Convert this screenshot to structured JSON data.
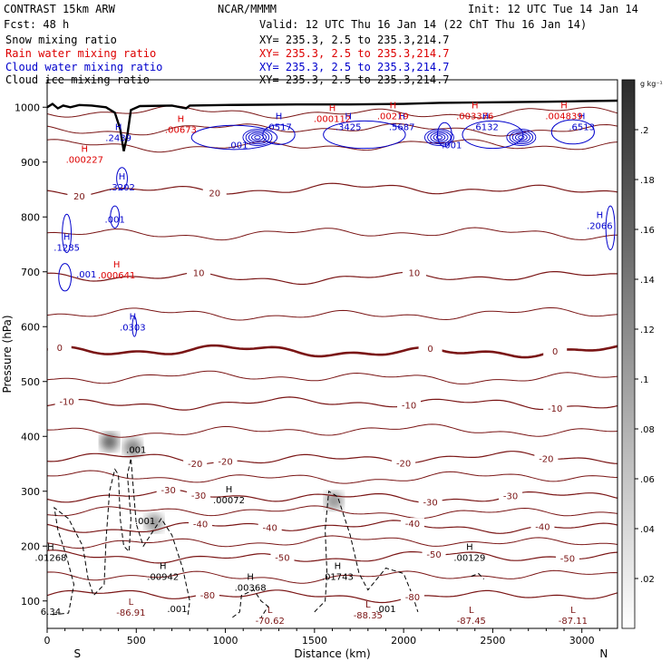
{
  "header": {
    "title": "CONTRAST 15km ARW",
    "center_title": "NCAR/MMMM",
    "init": "Init: 12 UTC Tue 14 Jan 14",
    "fcst": "Fcst:   48 h",
    "valid": "Valid: 12 UTC Thu 16 Jan 14 (22 ChT Thu 16 Jan 14)",
    "fields": [
      {
        "label": "Snow mixing ratio",
        "xy": "XY= 235.3,  2.5 to 235.3,214.7",
        "color": "#000000"
      },
      {
        "label": "Rain water mixing ratio",
        "xy": "XY= 235.3,  2.5 to 235.3,214.7",
        "color": "#dd0000"
      },
      {
        "label": "Cloud water mixing ratio",
        "xy": "XY= 235.3,  2.5 to 235.3,214.7",
        "color": "#0000cc"
      },
      {
        "label": "Cloud ice mixing ratio",
        "xy": "XY= 235.3,  2.5 to 235.3,214.7",
        "color": "#000000"
      }
    ]
  },
  "chart_data": {
    "type": "contour-cross-section",
    "xlabel": "Distance (km)",
    "ylabel": "Pressure (hPa)",
    "xlim": [
      0,
      3200
    ],
    "ylim": [
      1050,
      50
    ],
    "x_ticks": [
      0,
      500,
      1000,
      1500,
      2000,
      2500,
      3000
    ],
    "y_ticks": [
      100,
      200,
      300,
      400,
      500,
      600,
      700,
      800,
      900,
      1000
    ],
    "x_end_labels": {
      "left": "S",
      "right": "N"
    },
    "colorbar": {
      "unit": "g kg⁻¹",
      "ticks": [
        0.02,
        0.04,
        0.06,
        0.08,
        0.1,
        0.12,
        0.14,
        0.16,
        0.18,
        0.2
      ],
      "tick_labels": [
        ".02",
        ".04",
        ".06",
        ".08",
        ".1",
        ".12",
        ".14",
        ".16",
        ".18",
        ".2"
      ]
    },
    "temperature_isotherms": [
      {
        "value": -80,
        "label": "-80",
        "pressure_base": 110,
        "labels": [
          {
            "x": 900,
            "text": "-80"
          },
          {
            "x": 2050,
            "text": "-80"
          }
        ]
      },
      {
        "value": -50,
        "label": "-50",
        "pressure_base": 180,
        "labels": [
          {
            "x": 1320,
            "text": "-50"
          },
          {
            "x": 2170,
            "text": "-50"
          },
          {
            "x": 2920,
            "text": "-50"
          }
        ]
      },
      {
        "value": -40,
        "label": "-40",
        "pressure_base": 235,
        "labels": [
          {
            "x": 860,
            "text": "-40"
          },
          {
            "x": 1250,
            "text": "-40"
          },
          {
            "x": 2050,
            "text": "-40"
          },
          {
            "x": 2780,
            "text": "-40"
          }
        ]
      },
      {
        "value": -30,
        "label": "-30",
        "pressure_base": 290,
        "labels": [
          {
            "x": 680,
            "text": "-30"
          },
          {
            "x": 850,
            "text": "-30"
          },
          {
            "x": 2150,
            "text": "-30"
          },
          {
            "x": 2600,
            "text": "-30"
          }
        ]
      },
      {
        "value": -20,
        "label": "-20",
        "pressure_base": 360,
        "labels": [
          {
            "x": 830,
            "text": "-20"
          },
          {
            "x": 1000,
            "text": "-20"
          },
          {
            "x": 2000,
            "text": "-20"
          },
          {
            "x": 2800,
            "text": "-20"
          }
        ]
      },
      {
        "value": -10,
        "label": "-10",
        "pressure_base": 460,
        "labels": [
          {
            "x": 110,
            "text": "-10"
          },
          {
            "x": 2030,
            "text": "-10"
          },
          {
            "x": 2850,
            "text": "-10"
          }
        ]
      },
      {
        "value": 0,
        "label": "0",
        "pressure_base": 555,
        "labels": [
          {
            "x": 70,
            "text": "0"
          },
          {
            "x": 2150,
            "text": "0"
          },
          {
            "x": 2850,
            "text": "0"
          }
        ]
      },
      {
        "value": 10,
        "label": "10",
        "pressure_base": 690,
        "labels": [
          {
            "x": 850,
            "text": "10"
          },
          {
            "x": 2060,
            "text": "10"
          }
        ]
      },
      {
        "value": 20,
        "label": "20",
        "pressure_base": 850,
        "labels": [
          {
            "x": 180,
            "text": "20"
          },
          {
            "x": 940,
            "text": "20"
          }
        ]
      }
    ],
    "temperature_extrema": [
      {
        "kind": "L",
        "x": 470,
        "p": 80,
        "value": "-86.91"
      },
      {
        "kind": "L",
        "x": 1250,
        "p": 65,
        "value": "-70.62"
      },
      {
        "kind": "L",
        "x": 1800,
        "p": 75,
        "value": "-88.35"
      },
      {
        "kind": "L",
        "x": 2380,
        "p": 65,
        "value": "-87.45"
      },
      {
        "kind": "L",
        "x": 2950,
        "p": 65,
        "value": "-87.11"
      }
    ],
    "snow_extrema": [
      {
        "kind": "H",
        "x": 650,
        "p": 145,
        "value": ".00942"
      },
      {
        "kind": "H",
        "x": 1140,
        "p": 125,
        "value": ".00368"
      },
      {
        "kind": "H",
        "x": 1630,
        "p": 145,
        "value": ".01743"
      },
      {
        "kind": "H",
        "x": 2370,
        "p": 180,
        "value": ".00129"
      },
      {
        "kind": "H",
        "x": 1020,
        "p": 285,
        "value": ".00072"
      },
      {
        "kind": "H",
        "x": 20,
        "p": 180,
        "value": ".01268"
      }
    ],
    "snow_contour_labels": [
      {
        "x": 730,
        "p": 80,
        "text": ".001"
      },
      {
        "x": 1900,
        "p": 80,
        "text": ".001"
      },
      {
        "x": 550,
        "p": 240,
        "text": ".001"
      },
      {
        "x": 500,
        "p": 370,
        "text": ".001"
      },
      {
        "x": 20,
        "p": 75,
        "text": "6.34"
      }
    ],
    "rain_extrema": [
      {
        "kind": "H",
        "x": 390,
        "p": 695,
        "value": ".000641"
      },
      {
        "kind": "H",
        "x": 210,
        "p": 905,
        "value": ".000227"
      },
      {
        "kind": "H",
        "x": 750,
        "p": 960,
        "value": ".00673"
      },
      {
        "kind": "H",
        "x": 1600,
        "p": 980,
        "value": ".000112"
      },
      {
        "kind": "H",
        "x": 1940,
        "p": 985,
        "value": ".00219"
      },
      {
        "kind": "H",
        "x": 2400,
        "p": 985,
        "value": ".003376"
      },
      {
        "kind": "H",
        "x": 2900,
        "p": 985,
        "value": ".004839"
      }
    ],
    "cloud_water_extrema": [
      {
        "kind": "H",
        "x": 480,
        "p": 600,
        "value": ".0303"
      },
      {
        "kind": "H",
        "x": 110,
        "p": 745,
        "value": ".1285"
      },
      {
        "kind": "H",
        "x": 420,
        "p": 855,
        "value": ".3202"
      },
      {
        "kind": "H",
        "x": 400,
        "p": 945,
        "value": ".2439"
      },
      {
        "kind": "H",
        "x": 1300,
        "p": 965,
        "value": ".0517"
      },
      {
        "kind": "H",
        "x": 1690,
        "p": 965,
        "value": ".3425"
      },
      {
        "kind": "H",
        "x": 1990,
        "p": 965,
        "value": ".5687"
      },
      {
        "kind": "H",
        "x": 2460,
        "p": 965,
        "value": ".6132"
      },
      {
        "kind": "H",
        "x": 3000,
        "p": 965,
        "value": ".6513"
      },
      {
        "kind": "H",
        "x": 3100,
        "p": 785,
        "value": ".2066"
      }
    ],
    "cloud_water_contour_labels": [
      {
        "x": 220,
        "p": 690,
        "text": ".001"
      },
      {
        "x": 380,
        "p": 790,
        "text": ".001"
      },
      {
        "x": 1070,
        "p": 925,
        "text": ".001"
      },
      {
        "x": 2270,
        "p": 925,
        "text": ".001"
      }
    ],
    "snow_shading": [
      {
        "x": 350,
        "p_top": 270,
        "p_bot": 510,
        "max": 0.17
      },
      {
        "x": 480,
        "p_top": 260,
        "p_bot": 500,
        "max": 0.14
      },
      {
        "x": 600,
        "p_top": 165,
        "p_bot": 320,
        "max": 0.12
      },
      {
        "x": 1610,
        "p_top": 235,
        "p_bot": 330,
        "max": 0.12
      }
    ],
    "terrain": [
      [
        0,
        1000
      ],
      [
        30,
        1006
      ],
      [
        60,
        998
      ],
      [
        90,
        1003
      ],
      [
        130,
        1000
      ],
      [
        180,
        1004
      ],
      [
        250,
        1003
      ],
      [
        330,
        1000
      ],
      [
        380,
        990
      ],
      [
        410,
        960
      ],
      [
        430,
        920
      ],
      [
        450,
        950
      ],
      [
        470,
        995
      ],
      [
        520,
        1002
      ],
      [
        700,
        1003
      ],
      [
        780,
        998
      ],
      [
        800,
        1003
      ],
      [
        1000,
        1004
      ],
      [
        1400,
        1005
      ],
      [
        1700,
        1005
      ],
      [
        2000,
        1006
      ],
      [
        2200,
        1008
      ],
      [
        2500,
        1009
      ],
      [
        2800,
        1010
      ],
      [
        3000,
        1011
      ],
      [
        3200,
        1012
      ]
    ]
  }
}
